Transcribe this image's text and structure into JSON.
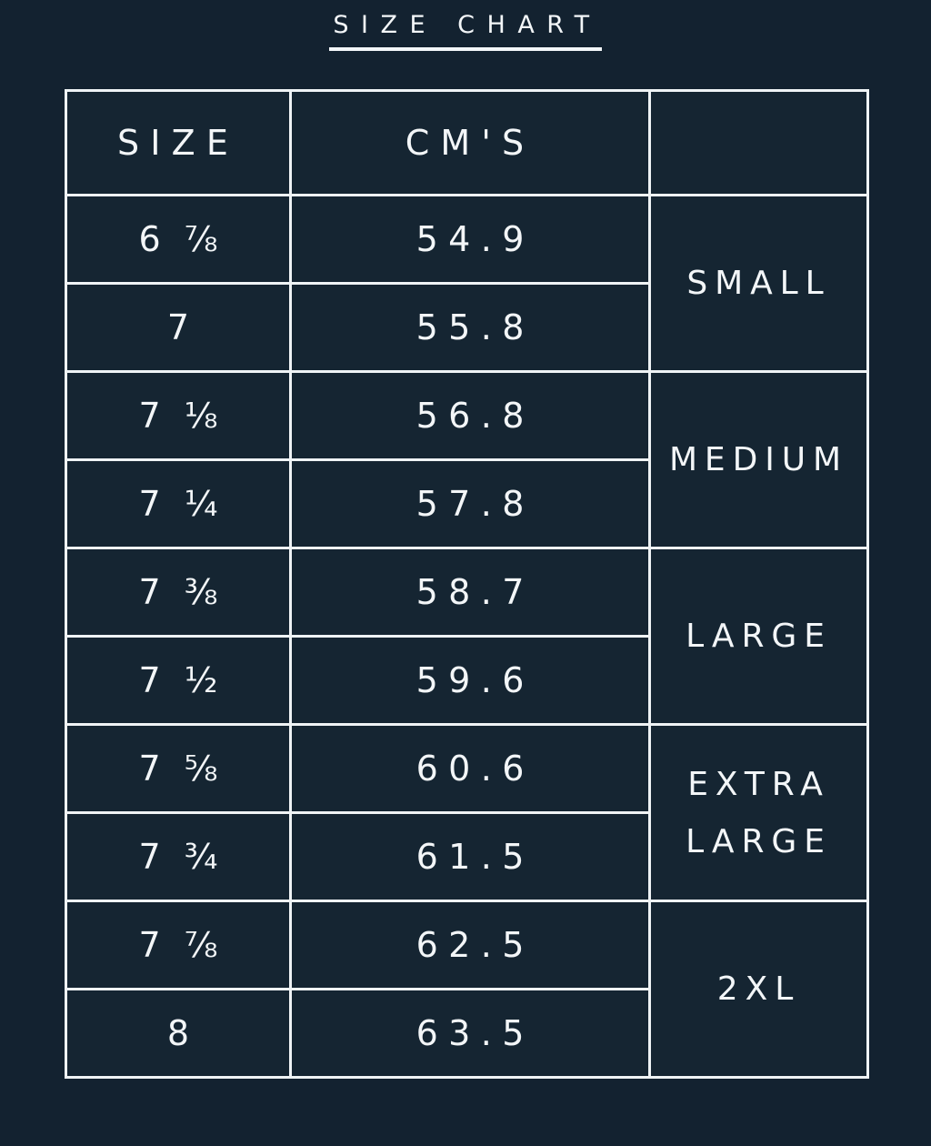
{
  "page": {
    "title": "SIZE CHART"
  },
  "colors": {
    "background": "#132230",
    "cell_background": "#152532",
    "border": "#EFF3F5",
    "text": "#F3F6F8"
  },
  "table": {
    "headers": {
      "size": "SIZE",
      "cm": "CM'S",
      "group": ""
    },
    "rows": [
      {
        "size_whole": "6",
        "size_fraction": "⅞",
        "cm": "54.9"
      },
      {
        "size_whole": "7",
        "size_fraction": "",
        "cm": "55.8"
      },
      {
        "size_whole": "7",
        "size_fraction": "⅛",
        "cm": "56.8"
      },
      {
        "size_whole": "7",
        "size_fraction": "¼",
        "cm": "57.8"
      },
      {
        "size_whole": "7",
        "size_fraction": "⅜",
        "cm": "58.7"
      },
      {
        "size_whole": "7",
        "size_fraction": "½",
        "cm": "59.6"
      },
      {
        "size_whole": "7",
        "size_fraction": "⅝",
        "cm": "60.6"
      },
      {
        "size_whole": "7",
        "size_fraction": "¾",
        "cm": "61.5"
      },
      {
        "size_whole": "7",
        "size_fraction": "⅞",
        "cm": "62.5"
      },
      {
        "size_whole": "8",
        "size_fraction": "",
        "cm": "63.5"
      }
    ],
    "groups": [
      {
        "label": "SMALL"
      },
      {
        "label": "MEDIUM"
      },
      {
        "label": "LARGE"
      },
      {
        "label": "EXTRA LARGE"
      },
      {
        "label": "2XL"
      }
    ]
  },
  "chart_data": {
    "type": "table",
    "title": "SIZE CHART",
    "columns": [
      "SIZE",
      "CM'S",
      ""
    ],
    "rows": [
      [
        "6 ⅞",
        "54.9",
        "SMALL"
      ],
      [
        "7",
        "55.8",
        "SMALL"
      ],
      [
        "7 ⅛",
        "56.8",
        "MEDIUM"
      ],
      [
        "7 ¼",
        "57.8",
        "MEDIUM"
      ],
      [
        "7 ⅜",
        "58.7",
        "LARGE"
      ],
      [
        "7 ½",
        "59.6",
        "LARGE"
      ],
      [
        "7 ⅝",
        "60.6",
        "EXTRA LARGE"
      ],
      [
        "7 ¾",
        "61.5",
        "EXTRA LARGE"
      ],
      [
        "7 ⅞",
        "62.5",
        "2XL"
      ],
      [
        "8",
        "63.5",
        "2XL"
      ]
    ]
  }
}
